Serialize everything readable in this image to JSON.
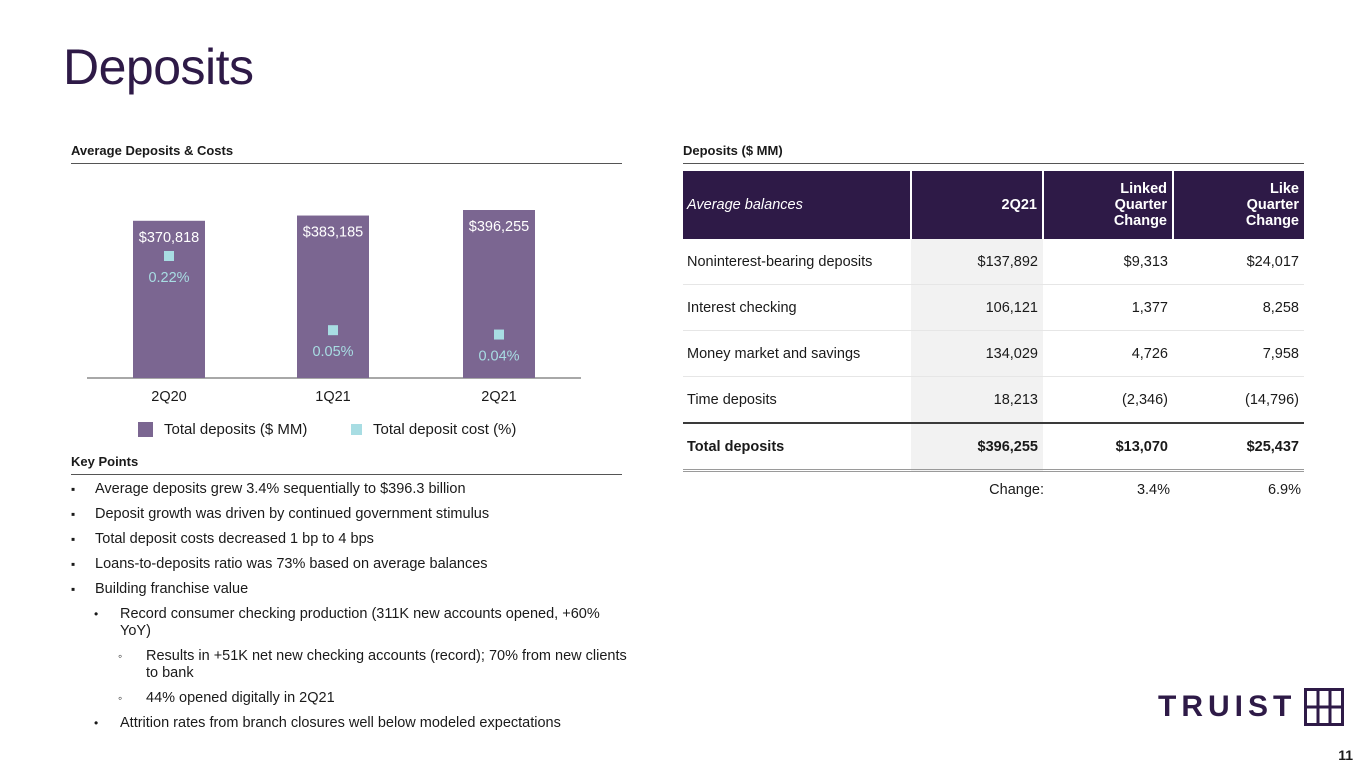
{
  "title": "Deposits",
  "chart_section": {
    "heading": "Average Deposits & Costs"
  },
  "chart_data": {
    "type": "bar",
    "categories": [
      "2Q20",
      "1Q21",
      "2Q21"
    ],
    "series": [
      {
        "name": "Total deposits ($ MM)",
        "kind": "bar",
        "values": [
          370818,
          383185,
          396255
        ],
        "labels": [
          "$370,818",
          "$383,185",
          "$396,255"
        ],
        "color": "#7b6691"
      },
      {
        "name": "Total deposit cost (%)",
        "kind": "marker",
        "values": [
          0.22,
          0.05,
          0.04
        ],
        "labels": [
          "0.22%",
          "0.05%",
          "0.04%"
        ],
        "color": "#a8dde3"
      }
    ],
    "title": "Average Deposits & Costs"
  },
  "key_points": {
    "heading": "Key Points",
    "items": [
      {
        "level": 0,
        "marker": "▪",
        "text": "Average deposits grew 3.4% sequentially to $396.3 billion"
      },
      {
        "level": 0,
        "marker": "▪",
        "text": "Deposit growth was driven by continued government stimulus"
      },
      {
        "level": 0,
        "marker": "▪",
        "text": "Total deposit costs decreased 1 bp to 4 bps"
      },
      {
        "level": 0,
        "marker": "▪",
        "text": "Loans-to-deposits ratio was 73% based on average balances"
      },
      {
        "level": 0,
        "marker": "▪",
        "text": "Building franchise value"
      },
      {
        "level": 1,
        "marker": "•",
        "text": "Record consumer checking production (311K new accounts opened, +60% YoY)"
      },
      {
        "level": 2,
        "marker": "◦",
        "text": "Results in +51K net new checking accounts (record); 70% from new clients to bank"
      },
      {
        "level": 2,
        "marker": "◦",
        "text": "44% opened digitally in 2Q21"
      },
      {
        "level": 1,
        "marker": "•",
        "text": "Attrition rates from branch closures well below modeled expectations"
      }
    ]
  },
  "deposits_table": {
    "heading": "Deposits ($ MM)",
    "columns": [
      "Average balances",
      "2Q21",
      "Linked Quarter Change",
      "Like Quarter Change"
    ],
    "rows": [
      [
        "Noninterest-bearing deposits",
        "$137,892",
        "$9,313",
        "$24,017"
      ],
      [
        "Interest checking",
        "106,121",
        "1,377",
        "8,258"
      ],
      [
        "Money market and savings",
        "134,029",
        "4,726",
        "7,958"
      ],
      [
        "Time deposits",
        "18,213",
        "(2,346)",
        "(14,796)"
      ],
      [
        "Total deposits",
        "$396,255",
        "$13,070",
        "$25,437"
      ]
    ],
    "change_label": "Change:",
    "change_linked": "3.4%",
    "change_like": "6.9%"
  },
  "logo": {
    "text": "TRUIST"
  },
  "page_number": "11"
}
